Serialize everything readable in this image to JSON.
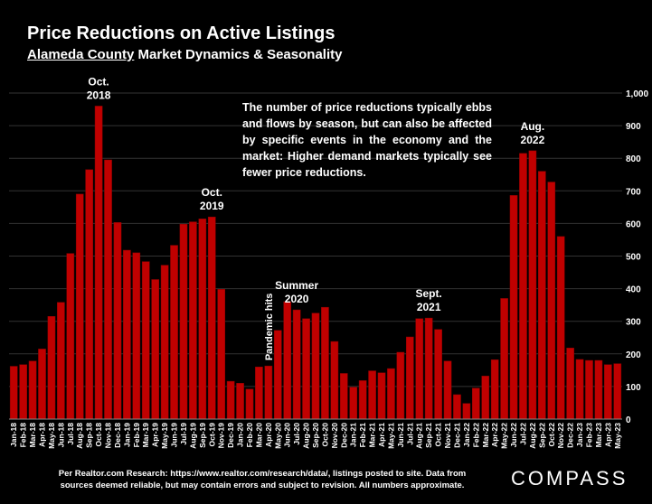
{
  "header": {
    "title": "Price Reductions on Active Listings",
    "subtitle_county": "Alameda County",
    "subtitle_rest": " Market Dynamics & Seasonality"
  },
  "annotation_text": "The number of price reductions typically ebbs and flows by season, but can also be affected by specific events in the economy and the market: Higher demand markets typically see fewer price reductions.",
  "footer": {
    "line1": "Per Realtor.com Research:  https://www.realtor.com/research/data/, listings posted to site. Data from",
    "line2": "sources deemed reliable, but may contain errors and subject to revision. All numbers approximate."
  },
  "logo": "COMPASS",
  "colors": {
    "bar": "#c00000",
    "bar_stroke": "#8a0000",
    "grid": "#333333",
    "background": "#000000"
  },
  "chart_data": {
    "type": "bar",
    "categories": [
      "Jan-18",
      "Feb-18",
      "Mar-18",
      "Apr-18",
      "May-18",
      "Jun-18",
      "Jul-18",
      "Aug-18",
      "Sep-18",
      "Oct-18",
      "Nov-18",
      "Dec-18",
      "Jan-19",
      "Feb-19",
      "Mar-19",
      "Apr-19",
      "May-19",
      "Jun-19",
      "Jul-19",
      "Aug-19",
      "Sep-19",
      "Oct-19",
      "Nov-19",
      "Dec-19",
      "Jan-20",
      "Feb-20",
      "Mar-20",
      "Apr-20",
      "May-20",
      "Jun-20",
      "Jul-20",
      "Aug-20",
      "Sep-20",
      "Oct-20",
      "Nov-20",
      "Dec-20",
      "Jan-21",
      "Feb-21",
      "Mar-21",
      "Apr-21",
      "May-21",
      "Jun-21",
      "Jul-21",
      "Aug-21",
      "Sep-21",
      "Oct-21",
      "Nov-21",
      "Dec-21",
      "Jan-22",
      "Feb-22",
      "Mar-22",
      "Apr-22",
      "May-22",
      "Jun-22",
      "Jul-22",
      "Aug-22",
      "Sep-22",
      "Oct-22",
      "Nov-22",
      "Dec-22",
      "Jan-23",
      "Feb-23",
      "Mar-23",
      "Apr-23",
      "May-23"
    ],
    "values": [
      162,
      167,
      178,
      215,
      315,
      358,
      508,
      690,
      765,
      960,
      795,
      603,
      518,
      510,
      483,
      428,
      472,
      533,
      598,
      605,
      614,
      620,
      398,
      116,
      110,
      92,
      160,
      163,
      272,
      360,
      335,
      308,
      325,
      343,
      238,
      140,
      98,
      118,
      148,
      142,
      155,
      205,
      252,
      308,
      310,
      275,
      178,
      75,
      48,
      95,
      132,
      182,
      370,
      686,
      815,
      823,
      760,
      727,
      560,
      218,
      183,
      180,
      180,
      167,
      170
    ],
    "yticks": [
      "0",
      "100",
      "200",
      "300",
      "400",
      "500",
      "600",
      "700",
      "800",
      "900",
      "1,000"
    ],
    "ylim": [
      0,
      1000
    ],
    "grid": true,
    "y_axis_side": "right",
    "annotations": [
      {
        "index": 9,
        "lines": [
          "Oct.",
          "2018"
        ]
      },
      {
        "index": 21,
        "lines": [
          "Oct.",
          "2019"
        ]
      },
      {
        "index": 27,
        "lines": [
          "Pandemic hits"
        ],
        "rotated": true
      },
      {
        "index": 30,
        "lines": [
          "Summer",
          "2020"
        ]
      },
      {
        "index": 44,
        "lines": [
          "Sept.",
          "2021"
        ]
      },
      {
        "index": 55,
        "lines": [
          "Aug.",
          "2022"
        ]
      }
    ]
  }
}
